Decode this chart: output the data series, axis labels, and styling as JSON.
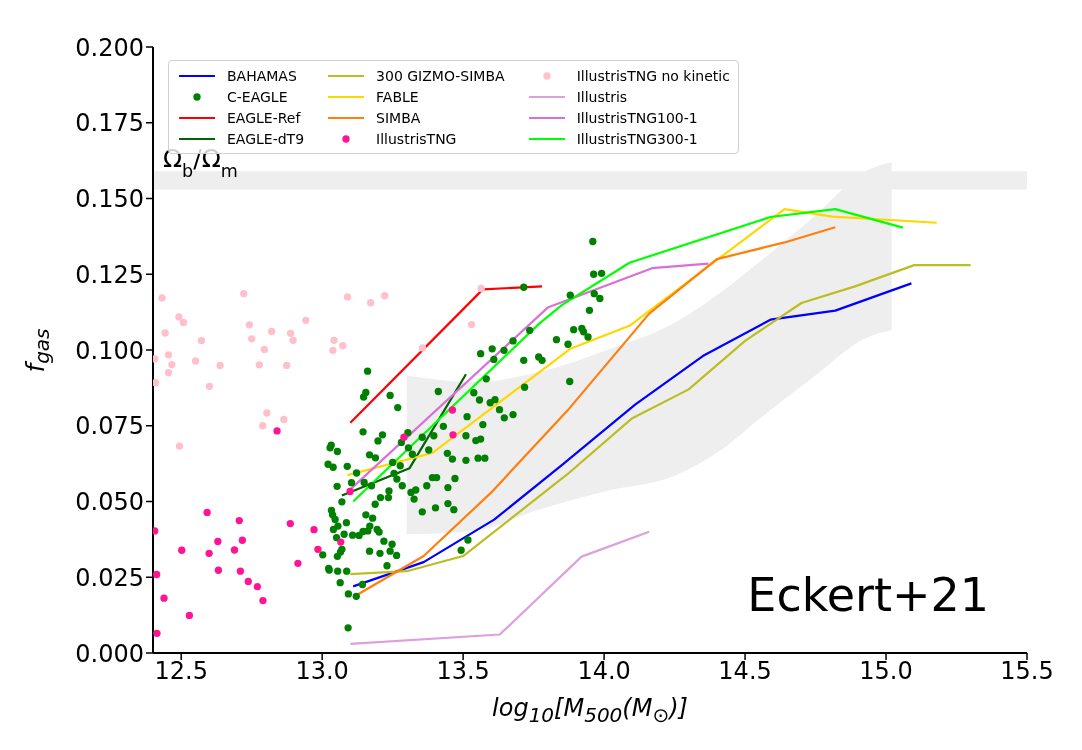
{
  "chart_data": {
    "type": "line",
    "xlabel": "log$_{10}$[M$_{500}$(M$_{⊙}$)]",
    "ylabel": "f$_{gas}$",
    "annotations": [
      "Eckert+21"
    ],
    "xlim": [
      12.4,
      15.5
    ],
    "xticks": [
      {
        "value": 12.5,
        "label": "12.5"
      },
      {
        "value": 13,
        "label": "13.0"
      },
      {
        "value": 13.5,
        "label": "13.5"
      },
      {
        "value": 14,
        "label": "14.0"
      },
      {
        "value": 14.5,
        "label": "14.5"
      },
      {
        "value": 15,
        "label": "15.0"
      },
      {
        "value": 15.5,
        "label": "15.5"
      }
    ],
    "ylim": [
      0,
      0.2
    ],
    "yticks": [
      {
        "value": 0,
        "label": "0.000"
      },
      {
        "value": 0.025,
        "label": "0.025"
      },
      {
        "value": 0.05,
        "label": "0.050"
      },
      {
        "value": 0.075,
        "label": "0.075"
      },
      {
        "value": 0.1,
        "label": "0.100"
      },
      {
        "value": 0.125,
        "label": "0.125"
      },
      {
        "value": 0.15,
        "label": "0.150"
      },
      {
        "value": 0.175,
        "label": "0.175"
      },
      {
        "value": 0.2,
        "label": "0.200"
      }
    ],
    "grid": false,
    "legend": "top left",
    "bands": [
      {
        "axis": "y",
        "from": 0.153,
        "to": 0.159,
        "label": "Ω$_{b}$/Ω$_{m}$",
        "color": "#eeeeee"
      }
    ],
    "series": [
      {
        "name": "BAHAMAS",
        "type": "line",
        "color": "#0000ff",
        "x": [
          13.11,
          13.36,
          13.61,
          13.85,
          14.11,
          14.35,
          14.59,
          14.82,
          15.09
        ],
        "values": [
          0.022,
          0.03,
          0.044,
          0.062,
          0.082,
          0.098,
          0.11,
          0.113,
          0.122
        ]
      },
      {
        "name": "C-EAGLE",
        "type": "scatter",
        "marker": "circle",
        "color": "#008000",
        "x": [
          13.161,
          13.155,
          13.147,
          13.241,
          13.268,
          13.145,
          13.214,
          13.198,
          13.304,
          13.032,
          13.028,
          13.054,
          13.168,
          13.189,
          13.281,
          13.306,
          13.32,
          13.355,
          13.396,
          13.412,
          13.378,
          13.43,
          13.444,
          13.462,
          13.25,
          13.277,
          13.089,
          13.021,
          13.039,
          13.122,
          13.104,
          13.149,
          13.175,
          13.255,
          13.265,
          13.284,
          13.053,
          13.237,
          13.235,
          13.207,
          13.07,
          13.188,
          13.315,
          13.332,
          13.326,
          13.371,
          13.391,
          13.406,
          13.471,
          13.446,
          13.446,
          13.467,
          13.402,
          13.355,
          13.033,
          13.037,
          13.046,
          13.086,
          13.056,
          13.04,
          13.078,
          13.051,
          13.108,
          13.131,
          13.145,
          13.162,
          13.169,
          13.179,
          13.155,
          13.195,
          13.202,
          13.219,
          13.248,
          13.168,
          13.205,
          13.241,
          13.264,
          13.07,
          13.065,
          13.054,
          13.002,
          13.23,
          13.023,
          13.025,
          13.055,
          13.087,
          13.064,
          13.143,
          13.093,
          13.121,
          13.092,
          13.493,
          13.517,
          13.538,
          13.558,
          13.582,
          13.596,
          13.629,
          13.646,
          13.677,
          13.514,
          13.51,
          13.51,
          13.545,
          13.562,
          13.553,
          13.577,
          13.57,
          13.613,
          13.562,
          13.603,
          13.609,
          13.645,
          13.677,
          13.715,
          13.718,
          13.768,
          13.78,
          13.831,
          13.736,
          13.715,
          13.96,
          13.963,
          13.991,
          13.88,
          13.965,
          13.985,
          13.948,
          13.892,
          13.921,
          13.927,
          13.943,
          13.872,
          13.878
        ],
        "values": [
          0.093,
          0.086,
          0.0845,
          0.085,
          0.081,
          0.073,
          0.072,
          0.07,
          0.0727,
          0.0686,
          0.0677,
          0.0665,
          0.0654,
          0.0644,
          0.0695,
          0.0677,
          0.0656,
          0.0712,
          0.0717,
          0.0863,
          0.067,
          0.0748,
          0.0659,
          0.064,
          0.0629,
          0.0618,
          0.0616,
          0.0623,
          0.0613,
          0.0594,
          0.0562,
          0.0563,
          0.0552,
          0.0593,
          0.0574,
          0.0552,
          0.055,
          0.0535,
          0.0513,
          0.0513,
          0.0499,
          0.0491,
          0.053,
          0.0538,
          0.0508,
          0.0552,
          0.0579,
          0.0579,
          0.0576,
          0.0546,
          0.0493,
          0.0473,
          0.0479,
          0.0466,
          0.0471,
          0.0456,
          0.0441,
          0.043,
          0.0419,
          0.0408,
          0.0392,
          0.0381,
          0.0389,
          0.0388,
          0.0401,
          0.0403,
          0.0419,
          0.0445,
          0.0456,
          0.0408,
          0.0399,
          0.0369,
          0.0359,
          0.0336,
          0.0329,
          0.0336,
          0.0322,
          0.0342,
          0.0333,
          0.0319,
          0.0324,
          0.0288,
          0.0279,
          0.0274,
          0.027,
          0.027,
          0.0232,
          0.0226,
          0.0195,
          0.0187,
          0.0083,
          0.0339,
          0.0373,
          0.0859,
          0.0835,
          0.0905,
          0.0826,
          0.0803,
          0.0776,
          0.0787,
          0.078,
          0.0717,
          0.0636,
          0.0701,
          0.0706,
          0.0643,
          0.0643,
          0.0754,
          0.0836,
          0.0988,
          0.1004,
          0.0969,
          0.0999,
          0.103,
          0.0966,
          0.0877,
          0.0977,
          0.0966,
          0.1034,
          0.1065,
          0.1207,
          0.1358,
          0.125,
          0.1253,
          0.1181,
          0.1186,
          0.117,
          0.1131,
          0.1067,
          0.1071,
          0.106,
          0.1043,
          0.1019,
          0.0896
        ]
      },
      {
        "name": "EAGLE-Ref",
        "type": "line",
        "color": "#ff0000",
        "x": [
          13.1,
          13.57,
          13.78
        ],
        "values": [
          0.076,
          0.12,
          0.121
        ]
      },
      {
        "name": "EAGLE-dT9",
        "type": "line",
        "color": "#006400",
        "x": [
          13.07,
          13.31,
          13.51
        ],
        "values": [
          0.052,
          0.061,
          0.092
        ]
      },
      {
        "name": "300 GIZMO-SIMBA",
        "type": "line",
        "color": "#bcbd22",
        "x": [
          13.1,
          13.3,
          13.5,
          13.87,
          14.1,
          14.3,
          14.5,
          14.7,
          14.89,
          15.1,
          15.3
        ],
        "values": [
          0.026,
          0.027,
          0.032,
          0.059,
          0.0775,
          0.087,
          0.103,
          0.1155,
          0.121,
          0.128,
          0.128
        ]
      },
      {
        "name": "FABLE",
        "type": "line",
        "color": "#ffd700",
        "x": [
          13.09,
          13.39,
          13.88,
          14.09,
          14.64,
          14.81,
          15.18
        ],
        "values": [
          0.0587,
          0.066,
          0.1004,
          0.108,
          0.1465,
          0.144,
          0.142
        ]
      },
      {
        "name": "SIMBA",
        "type": "line",
        "color": "#ff7f0e",
        "x": [
          13.12,
          13.36,
          13.6,
          13.87,
          14.16,
          14.4,
          14.64,
          14.82
        ],
        "values": [
          0.019,
          0.032,
          0.053,
          0.08,
          0.112,
          0.13,
          0.1355,
          0.1405
        ]
      },
      {
        "name": "IllustrisTNG",
        "type": "scatter",
        "marker": "circle",
        "color": "#ff1493",
        "x": [
          12.84,
          12.592,
          12.706,
          12.887,
          12.971,
          12.406,
          12.63,
          12.717,
          12.502,
          12.599,
          12.689,
          12.985,
          13.066,
          12.71,
          12.632,
          12.914,
          12.413,
          12.738,
          12.77,
          12.439,
          12.79,
          12.529,
          12.414,
          13.099,
          13.29,
          13.464,
          13.462
        ],
        "values": [
          0.0733,
          0.0464,
          0.0437,
          0.0427,
          0.0407,
          0.0403,
          0.0368,
          0.0372,
          0.0339,
          0.0329,
          0.034,
          0.0342,
          0.0366,
          0.027,
          0.0273,
          0.0296,
          0.0259,
          0.0236,
          0.0219,
          0.0181,
          0.0173,
          0.0124,
          0.0065,
          0.0533,
          0.0712,
          0.072,
          0.0802
        ]
      },
      {
        "name": "IllustrisTNG no kinetic",
        "type": "scatter",
        "marker": "circle",
        "color": "#ffc0cb",
        "x": [
          12.432,
          12.722,
          13.09,
          13.222,
          13.172,
          12.492,
          12.508,
          12.443,
          12.742,
          12.942,
          12.572,
          12.75,
          12.821,
          12.888,
          12.897,
          13.042,
          13.038,
          13.073,
          12.795,
          12.455,
          12.551,
          12.467,
          12.638,
          12.777,
          12.874,
          13.564,
          13.356,
          13.53,
          12.455,
          12.406,
          12.409,
          12.6,
          12.804,
          12.864,
          12.789,
          12.494
        ],
        "values": [
          0.1172,
          0.1186,
          0.1175,
          0.1179,
          0.1156,
          0.1109,
          0.1091,
          0.1056,
          0.1083,
          0.1098,
          0.1031,
          0.1037,
          0.1061,
          0.1055,
          0.1032,
          0.1032,
          0.0999,
          0.1014,
          0.1002,
          0.0984,
          0.0964,
          0.0952,
          0.0949,
          0.0951,
          0.0949,
          0.1203,
          0.1007,
          0.1084,
          0.0925,
          0.0971,
          0.0892,
          0.088,
          0.0792,
          0.0771,
          0.075,
          0.0683
        ]
      },
      {
        "name": "Illustris",
        "type": "line",
        "color": "#dda0dd",
        "x": [
          13.1,
          13.63,
          13.92,
          14.16
        ],
        "values": [
          0.003,
          0.0061,
          0.0318,
          0.04
        ]
      },
      {
        "name": "IllustrisTNG100-1",
        "type": "line",
        "color": "#da70d6",
        "x": [
          13.1,
          13.8,
          14.17,
          14.37
        ],
        "values": [
          0.054,
          0.114,
          0.127,
          0.1285
        ]
      },
      {
        "name": "IllustrisTNG300-1",
        "type": "line",
        "color": "#00ff00",
        "x": [
          13.11,
          13.77,
          13.85,
          14.09,
          14.59,
          14.82,
          15.06
        ],
        "values": [
          0.05,
          0.1087,
          0.1148,
          0.1288,
          0.1439,
          0.1465,
          0.1404
        ]
      },
      {
        "type": "line",
        "color": "#eeeeee",
        "x": [
          13.3,
          13.54,
          13.77,
          14.01,
          14.25,
          14.42,
          14.55,
          14.72,
          14.95,
          15.02
        ],
        "values": [
          null,
          null,
          null,
          null,
          null,
          null,
          null,
          null,
          null,
          null
        ],
        "lower": [
          0.0392,
          0.0403,
          0.0474,
          0.0535,
          0.0585,
          0.0673,
          0.0772,
          0.0894,
          0.1048,
          0.1065
        ],
        "upper": [
          0.0916,
          0.0894,
          0.0927,
          0.1,
          0.109,
          0.1195,
          0.129,
          0.142,
          0.16,
          0.162
        ]
      }
    ]
  }
}
